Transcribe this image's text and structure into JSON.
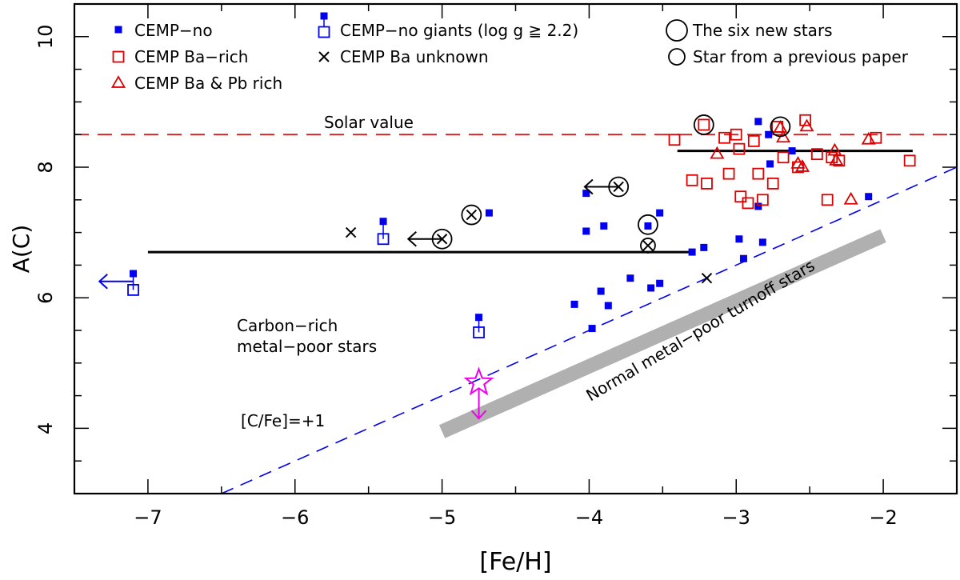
{
  "chart_data": {
    "type": "scatter",
    "xlabel": "[Fe/H]",
    "ylabel": "A(C)",
    "xlim": [
      -7.5,
      -1.5
    ],
    "ylim": [
      3.0,
      10.5
    ],
    "x_ticks": [
      -7,
      -6,
      -5,
      -4,
      -3,
      -2
    ],
    "x_tick_labels": [
      "−7",
      "−6",
      "−5",
      "−4",
      "−3",
      "−2"
    ],
    "y_ticks": [
      4,
      6,
      8,
      10
    ],
    "y_tick_labels": [
      "4",
      "6",
      "8",
      "10"
    ],
    "grid": false,
    "legend_position": "top",
    "legend": {
      "cemp_no": "CEMP−no",
      "cemp_no_giants": "CEMP−no giants (log g ≧ 2.2)",
      "six_new": "The six new stars",
      "ba_rich": "CEMP Ba−rich",
      "ba_unknown": "CEMP Ba unknown",
      "previous": "Star from a previous paper",
      "ba_pb_rich": "CEMP Ba & Pb rich"
    },
    "annotations": {
      "solar": "Solar value",
      "carbon_rich_1": "Carbon−rich",
      "carbon_rich_2": "metal−poor stars",
      "cfe": "[C/Fe]=+1",
      "turnoff": "Normal metal−poor turnoff stars"
    },
    "colors": {
      "cemp_no": "#0000ee",
      "ba_rich": "#dd0000",
      "solar_line": "#cc2222",
      "band": "#b0b0b0",
      "special": "#ee00ee",
      "mean_line": "#000000"
    },
    "solar_value": 8.5,
    "cfe_line": {
      "x": [
        -6.5,
        -1.5
      ],
      "y": [
        3.0,
        8.0
      ]
    },
    "turnoff_band": {
      "x": [
        -5.0,
        -2.0
      ],
      "y": [
        3.95,
        6.95
      ]
    },
    "mean_lines": [
      {
        "x": [
          -7.0,
          -3.3
        ],
        "y": 6.7
      },
      {
        "x": [
          -3.4,
          -1.8
        ],
        "y": 8.25
      }
    ],
    "series": [
      {
        "name": "CEMP−no",
        "marker": "filled-square",
        "points": [
          [
            -7.1,
            6.37
          ],
          [
            -5.4,
            7.17
          ],
          [
            -4.75,
            5.7
          ],
          [
            -4.68,
            7.3
          ],
          [
            -4.02,
            7.6
          ],
          [
            -4.02,
            7.02
          ],
          [
            -3.9,
            7.1
          ],
          [
            -3.6,
            7.1
          ],
          [
            -3.52,
            7.3
          ],
          [
            -3.3,
            6.7
          ],
          [
            -3.22,
            6.77
          ],
          [
            -4.1,
            5.9
          ],
          [
            -3.98,
            5.53
          ],
          [
            -3.92,
            6.1
          ],
          [
            -3.87,
            5.88
          ],
          [
            -3.72,
            6.3
          ],
          [
            -3.58,
            6.15
          ],
          [
            -3.52,
            6.22
          ],
          [
            -2.98,
            6.9
          ],
          [
            -2.95,
            6.6
          ],
          [
            -2.82,
            6.85
          ],
          [
            -2.85,
            8.7
          ],
          [
            -2.78,
            8.5
          ],
          [
            -2.77,
            8.05
          ],
          [
            -2.62,
            8.25
          ],
          [
            -2.85,
            7.4
          ],
          [
            -2.1,
            7.55
          ]
        ]
      },
      {
        "name": "CEMP−no giants (log g ≧ 2.2)",
        "marker": "open-square",
        "points": [
          [
            -7.1,
            6.12
          ],
          [
            -5.4,
            6.9
          ],
          [
            -4.75,
            5.47
          ]
        ]
      },
      {
        "name": "CEMP Ba−rich",
        "marker": "open-square",
        "points": [
          [
            -3.22,
            8.65
          ],
          [
            -3.42,
            8.42
          ],
          [
            -3.3,
            7.8
          ],
          [
            -3.2,
            7.75
          ],
          [
            -3.08,
            8.45
          ],
          [
            -3.05,
            7.9
          ],
          [
            -3.0,
            8.5
          ],
          [
            -2.98,
            8.28
          ],
          [
            -2.97,
            7.55
          ],
          [
            -2.92,
            7.45
          ],
          [
            -2.88,
            8.4
          ],
          [
            -2.85,
            7.9
          ],
          [
            -2.82,
            7.5
          ],
          [
            -2.75,
            7.75
          ],
          [
            -2.72,
            8.62
          ],
          [
            -2.68,
            8.15
          ],
          [
            -2.58,
            8.0
          ],
          [
            -2.53,
            8.72
          ],
          [
            -2.45,
            8.2
          ],
          [
            -2.38,
            7.5
          ],
          [
            -2.35,
            8.15
          ],
          [
            -2.3,
            8.1
          ],
          [
            -2.05,
            8.45
          ],
          [
            -1.82,
            8.1
          ]
        ]
      },
      {
        "name": "CEMP Ba & Pb rich",
        "marker": "open-triangle",
        "points": [
          [
            -3.13,
            8.2
          ],
          [
            -2.7,
            8.6
          ],
          [
            -2.58,
            8.05
          ],
          [
            -2.55,
            8.0
          ],
          [
            -2.52,
            8.62
          ],
          [
            -2.33,
            8.25
          ],
          [
            -2.32,
            8.1
          ],
          [
            -2.22,
            7.5
          ],
          [
            -2.1,
            8.42
          ],
          [
            -2.68,
            8.45
          ]
        ]
      },
      {
        "name": "CEMP Ba unknown",
        "marker": "cross",
        "points": [
          [
            -5.62,
            7.0
          ],
          [
            -3.2,
            6.3
          ]
        ]
      },
      {
        "name": "The six new stars",
        "marker": "large-open-circle",
        "points": [
          [
            -3.22,
            8.65
          ],
          [
            -2.7,
            8.62
          ],
          [
            -4.8,
            7.27
          ],
          [
            -3.8,
            7.7
          ],
          [
            -5.0,
            6.9
          ],
          [
            -3.6,
            7.12
          ]
        ]
      },
      {
        "name": "Star from a previous paper",
        "marker": "small-open-circle",
        "points": [
          [
            -3.6,
            6.8
          ]
        ]
      }
    ],
    "crosses_in_circles": [
      [
        -4.8,
        7.27
      ],
      [
        -3.8,
        7.7
      ],
      [
        -5.0,
        6.9
      ],
      [
        -3.6,
        6.8
      ]
    ],
    "upper_limit_arrows": [
      {
        "from": [
          -7.1,
          6.25
        ],
        "to": [
          -7.33,
          6.25
        ],
        "color": "#0000ee"
      },
      {
        "from": [
          -3.8,
          7.7
        ],
        "to": [
          -4.03,
          7.7
        ],
        "color": "#000000"
      },
      {
        "from": [
          -5.0,
          6.9
        ],
        "to": [
          -5.23,
          6.9
        ],
        "color": "#000000"
      }
    ],
    "special_star": {
      "x": -4.75,
      "y": 4.7,
      "arrow_to_y": 4.15,
      "color": "#ee00ee"
    }
  }
}
